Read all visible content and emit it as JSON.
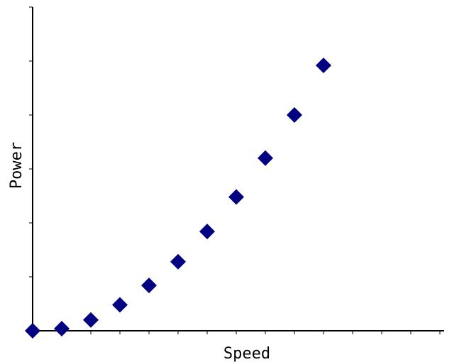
{
  "chart_data": {
    "type": "scatter",
    "title": "",
    "xlabel": "Speed",
    "ylabel": "Power",
    "x": [
      0,
      1,
      2,
      3,
      4,
      5,
      6,
      7,
      8,
      9,
      10
    ],
    "y": [
      0,
      0.1,
      0.5,
      1.2,
      2.1,
      3.2,
      4.6,
      6.2,
      8.0,
      10.0,
      12.3
    ],
    "xlim": [
      0,
      14
    ],
    "ylim": [
      0,
      15
    ],
    "x_ticks": 14,
    "y_ticks": 6,
    "tick_labels_shown": false,
    "grid": false,
    "marker": "diamond",
    "marker_color": "#000080"
  }
}
